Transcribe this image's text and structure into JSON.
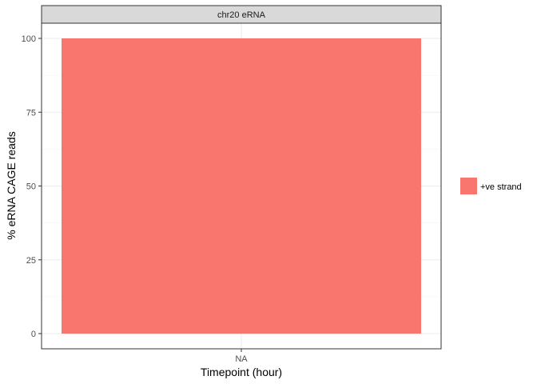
{
  "chart_data": {
    "type": "bar",
    "facet_label": "chr20 eRNA",
    "categories": [
      "NA"
    ],
    "series": [
      {
        "name": "+ve strand",
        "color": "#F8766D",
        "values": [
          100
        ]
      }
    ],
    "xlabel": "Timepoint (hour)",
    "ylabel": "% eRNA CAGE reads",
    "ylim": [
      0,
      100
    ],
    "yticks": [
      0,
      25,
      50,
      75,
      100
    ],
    "grid": true,
    "legend_position": "right"
  }
}
